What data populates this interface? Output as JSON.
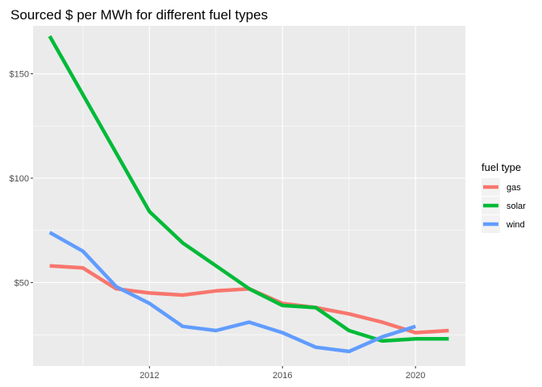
{
  "chart_data": {
    "type": "line",
    "title": "Sourced $ per MWh for different fuel types",
    "xlabel": "",
    "ylabel": "",
    "xlim": [
      2008.5,
      2021.5
    ],
    "ylim": [
      10,
      173
    ],
    "x_ticks": [
      2012,
      2016,
      2020
    ],
    "y_ticks": [
      50,
      100,
      150
    ],
    "y_tick_labels": [
      "$50",
      "$100",
      "$150"
    ],
    "grid": true,
    "legend": {
      "title": "fuel type",
      "position": "right"
    },
    "series": [
      {
        "name": "gas",
        "color": "#F8766D",
        "x": [
          2009,
          2010,
          2011,
          2012,
          2013,
          2014,
          2015,
          2016,
          2017,
          2018,
          2019,
          2020,
          2021
        ],
        "values": [
          58,
          57,
          47,
          45,
          44,
          46,
          47,
          40,
          38,
          35,
          31,
          26,
          27
        ]
      },
      {
        "name": "solar",
        "color": "#00BA38",
        "x": [
          2009,
          2010,
          2011,
          2012,
          2013,
          2014,
          2015,
          2016,
          2017,
          2018,
          2019,
          2020,
          2021
        ],
        "values": [
          168,
          140,
          112,
          84,
          69,
          58,
          47,
          39,
          38,
          27,
          22,
          23,
          23
        ]
      },
      {
        "name": "wind",
        "color": "#619CFF",
        "x": [
          2009,
          2010,
          2011,
          2012,
          2013,
          2014,
          2015,
          2016,
          2017,
          2018,
          2019,
          2020
        ],
        "values": [
          74,
          65,
          48,
          40,
          29,
          27,
          31,
          26,
          19,
          17,
          24,
          29
        ]
      }
    ]
  }
}
